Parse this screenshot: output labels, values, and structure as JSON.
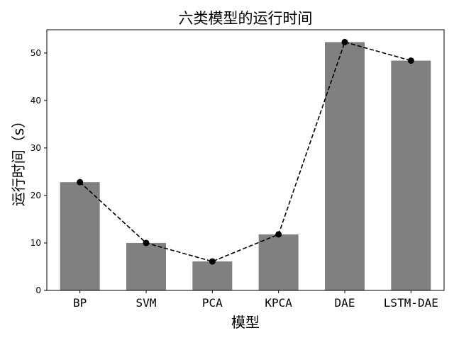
{
  "chart_data": {
    "type": "bar",
    "title": "六类模型的运行时间",
    "xlabel": "模型",
    "ylabel": "运行时间（s）",
    "categories": [
      "BP",
      "SVM",
      "PCA",
      "KPCA",
      "DAE",
      "LSTM-DAE"
    ],
    "series": [
      {
        "kind": "bar",
        "values": [
          22.8,
          10.0,
          6.1,
          11.8,
          52.3,
          48.4
        ],
        "color": "#808080"
      },
      {
        "kind": "line",
        "style": "dashed",
        "marker": "circle",
        "values": [
          22.8,
          10.0,
          6.1,
          11.8,
          52.3,
          48.4
        ],
        "color": "#000000"
      }
    ],
    "ylim": [
      0,
      54.9
    ],
    "yticks": [
      0,
      10,
      20,
      30,
      40,
      50
    ],
    "grid": false,
    "legend": "none"
  }
}
